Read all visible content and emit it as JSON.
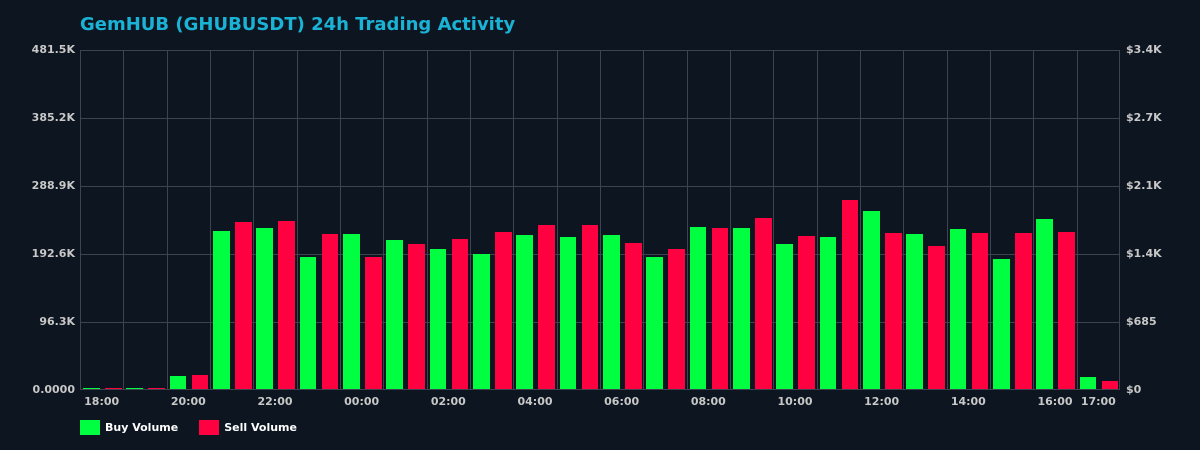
{
  "header": {
    "title": "GemHUB (GHUBUSDT) 24h Trading Activity"
  },
  "colors": {
    "background": "#0d1520",
    "title": "#1ab3d6",
    "buy": "#00ff41",
    "sell": "#ff0040",
    "grid": "#3d4450",
    "axis_text": "#c8c8c8"
  },
  "axes": {
    "left_ticks": [
      "481.5K",
      "385.2K",
      "288.9K",
      "192.6K",
      "96.3K",
      "0.0000"
    ],
    "right_ticks": [
      "$3.4K",
      "$2.7K",
      "$2.1K",
      "$1.4K",
      "$685",
      "$0"
    ],
    "x_ticks": [
      {
        "label": "18:00",
        "index": 0
      },
      {
        "label": "20:00",
        "index": 2
      },
      {
        "label": "22:00",
        "index": 4
      },
      {
        "label": "00:00",
        "index": 6
      },
      {
        "label": "02:00",
        "index": 8
      },
      {
        "label": "04:00",
        "index": 10
      },
      {
        "label": "06:00",
        "index": 12
      },
      {
        "label": "08:00",
        "index": 14
      },
      {
        "label": "10:00",
        "index": 16
      },
      {
        "label": "12:00",
        "index": 18
      },
      {
        "label": "14:00",
        "index": 20
      },
      {
        "label": "16:00",
        "index": 22
      },
      {
        "label": "17:00",
        "index": 23
      }
    ]
  },
  "legend": {
    "buy_label": "Buy Volume",
    "sell_label": "Sell Volume"
  },
  "chart_data": {
    "type": "bar",
    "title": "GemHUB (GHUBUSDT) 24h Trading Activity",
    "xlabel": "",
    "ylabel": "",
    "ylim": [
      0,
      481500
    ],
    "y2lim": [
      0,
      3400
    ],
    "grid": true,
    "legend_position": "bottom-left",
    "categories": [
      "18:00",
      "19:00",
      "20:00",
      "21:00",
      "22:00",
      "23:00",
      "00:00",
      "01:00",
      "02:00",
      "03:00",
      "04:00",
      "05:00",
      "06:00",
      "07:00",
      "08:00",
      "09:00",
      "10:00",
      "11:00",
      "12:00",
      "13:00",
      "14:00",
      "15:00",
      "16:00",
      "17:00"
    ],
    "series": [
      {
        "name": "Buy Volume",
        "color": "#00ff41",
        "values": [
          1400,
          1400,
          18400,
          223800,
          228000,
          186900,
          219500,
          211000,
          198300,
          191200,
          218100,
          215300,
          218100,
          186900,
          229400,
          228000,
          205300,
          215300,
          252100,
          219500,
          226600,
          184100,
          240800,
          17000
        ]
      },
      {
        "name": "Sell Volume",
        "color": "#ff0040",
        "values": [
          700,
          700,
          19800,
          236500,
          237900,
          219500,
          186900,
          205300,
          212400,
          222300,
          232300,
          232300,
          206800,
          198300,
          228000,
          242200,
          216700,
          267700,
          220900,
          202500,
          220900,
          220900,
          222300,
          11300
        ]
      }
    ]
  }
}
